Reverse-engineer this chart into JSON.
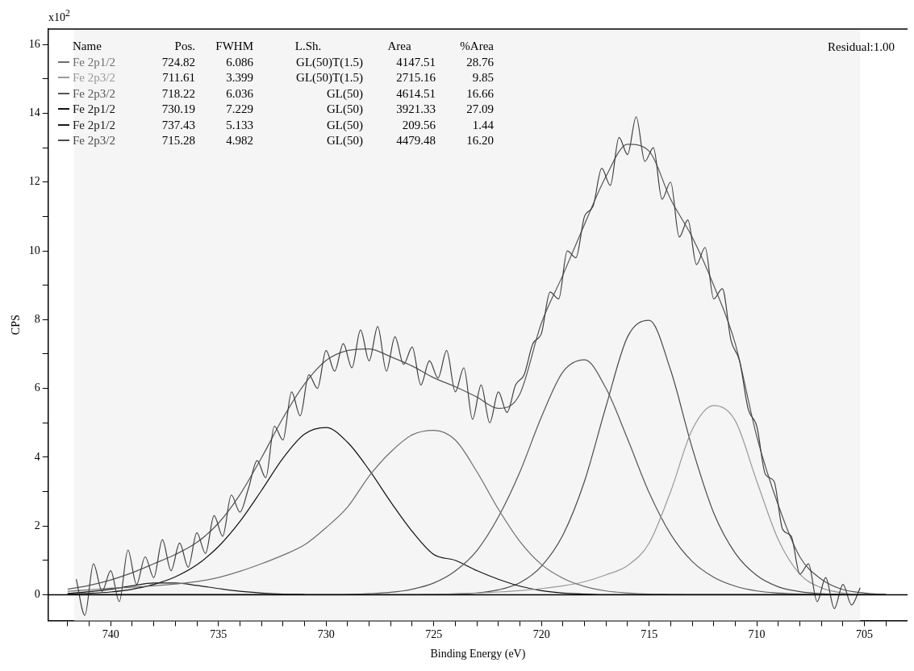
{
  "chart_data": {
    "type": "line",
    "xlabel": "Binding Energy (eV)",
    "ylabel": "CPS",
    "xlim": [
      742.9,
      703
    ],
    "ylim": [
      -0.75,
      16.45
    ],
    "xticks": [
      {
        "value": 742,
        "label": null
      },
      {
        "value": 741,
        "label": null
      },
      740,
      {
        "value": 739,
        "label": null
      },
      {
        "value": 738,
        "label": null
      },
      {
        "value": 737,
        "label": null
      },
      {
        "value": 736,
        "label": null
      },
      735,
      {
        "value": 734,
        "label": null
      },
      {
        "value": 733,
        "label": null
      },
      {
        "value": 732,
        "label": null
      },
      {
        "value": 731,
        "label": null
      },
      730,
      {
        "value": 729,
        "label": null
      },
      {
        "value": 728,
        "label": null
      },
      {
        "value": 727,
        "label": null
      },
      {
        "value": 726,
        "label": null
      },
      725,
      {
        "value": 724,
        "label": null
      },
      {
        "value": 723,
        "label": null
      },
      {
        "value": 722,
        "label": null
      },
      {
        "value": 721,
        "label": null
      },
      720,
      {
        "value": 719,
        "label": null
      },
      {
        "value": 718,
        "label": null
      },
      {
        "value": 717,
        "label": null
      },
      {
        "value": 716,
        "label": null
      },
      715,
      {
        "value": 714,
        "label": null
      },
      {
        "value": 713,
        "label": null
      },
      {
        "value": 712,
        "label": null
      },
      {
        "value": 711,
        "label": null
      },
      710,
      {
        "value": 709,
        "label": null
      },
      {
        "value": 708,
        "label": null
      },
      {
        "value": 707,
        "label": null
      },
      {
        "value": 706,
        "label": null
      },
      705,
      {
        "value": 704,
        "label": null
      }
    ],
    "yticks": [
      0,
      {
        "value": 1,
        "label": null
      },
      2,
      {
        "value": 3,
        "label": null
      },
      4,
      {
        "value": 5,
        "label": null
      },
      6,
      {
        "value": 7,
        "label": null
      },
      8,
      {
        "value": 9,
        "label": null
      },
      10,
      {
        "value": 11,
        "label": null
      },
      12,
      {
        "value": 13,
        "label": null
      },
      14,
      {
        "value": 15,
        "label": null
      },
      16
    ],
    "grid": false,
    "legend": "top left",
    "marker": "none",
    "line_style": "solid",
    "bands": [
      {
        "axis": "x",
        "from": 741.7,
        "to": 705.2,
        "color": "#f5f5f5"
      }
    ],
    "ref_lines": [
      {
        "axis": "y",
        "value": 0,
        "color": "#000000"
      }
    ],
    "annotations": [
      "x10$^{2}$",
      "Residual:1.00",
      "Name",
      "Pos.",
      "FWHM",
      "L.Sh.",
      "Area",
      "%Area",
      "724.82",
      "6.086",
      "GL(50)T(1.5)",
      "4147.51",
      "28.76",
      "711.61",
      "3.399",
      "GL(50)T(1.5)",
      "2715.16",
      "9.85",
      "718.22",
      "6.036",
      "GL(50)",
      "4614.51",
      "16.66",
      "730.19",
      "7.229",
      "GL(50)",
      "3921.33",
      "27.09",
      "737.43",
      "5.133",
      "GL(50)",
      "209.56",
      "1.44",
      "715.28",
      "4.982",
      "GL(50)",
      "4479.48",
      "16.20"
    ],
    "x": [
      742,
      741,
      740,
      739,
      738,
      737,
      736,
      735,
      734,
      733,
      732,
      731,
      730,
      729,
      728,
      727,
      726,
      725,
      724,
      723,
      722,
      721,
      720,
      719,
      718,
      717,
      716,
      715,
      714,
      713,
      712,
      711,
      710,
      709,
      708,
      707,
      706,
      705,
      704
    ],
    "series": [
      {
        "color": "#404040",
        "x": [
          741.6,
          741.2,
          740.8,
          740.4,
          740.0,
          739.6,
          739.2,
          738.8,
          738.4,
          738.0,
          737.6,
          737.2,
          736.8,
          736.4,
          736.0,
          735.6,
          735.2,
          734.8,
          734.4,
          734.0,
          733.6,
          733.2,
          732.8,
          732.4,
          732.0,
          731.6,
          731.2,
          730.8,
          730.4,
          730.0,
          729.6,
          729.2,
          728.8,
          728.4,
          728.0,
          727.6,
          727.2,
          726.8,
          726.4,
          726.0,
          725.6,
          725.2,
          724.8,
          724.4,
          724.0,
          723.6,
          723.2,
          722.8,
          722.4,
          722.0,
          721.6,
          721.2,
          720.8,
          720.4,
          720.0,
          719.6,
          719.2,
          718.8,
          718.4,
          718.0,
          717.6,
          717.2,
          716.8,
          716.4,
          716.0,
          715.6,
          715.2,
          714.8,
          714.4,
          714.0,
          713.6,
          713.2,
          712.8,
          712.4,
          712.0,
          711.6,
          711.2,
          710.8,
          710.4,
          710.0,
          709.6,
          709.2,
          708.8,
          708.4,
          708.0,
          707.6,
          707.2,
          706.8,
          706.4,
          706.0,
          705.6,
          705.2
        ],
        "values": [
          0.45,
          -0.6,
          0.9,
          0.1,
          0.7,
          -0.2,
          1.3,
          0.3,
          1.1,
          0.5,
          1.6,
          0.7,
          1.5,
          0.8,
          1.8,
          1.2,
          2.3,
          1.7,
          2.9,
          2.4,
          3.1,
          3.9,
          3.4,
          4.9,
          4.5,
          5.9,
          5.2,
          6.4,
          6.0,
          7.1,
          6.5,
          7.3,
          6.6,
          7.7,
          6.8,
          7.8,
          6.5,
          7.5,
          6.7,
          7.2,
          6.1,
          6.8,
          6.3,
          7.1,
          5.9,
          6.6,
          5.1,
          6.1,
          5.0,
          5.9,
          5.3,
          6.1,
          6.4,
          7.3,
          7.6,
          8.8,
          8.6,
          10.0,
          9.8,
          11.0,
          11.3,
          12.4,
          11.9,
          13.3,
          12.8,
          13.9,
          12.6,
          13.0,
          11.5,
          12.0,
          10.4,
          10.9,
          9.6,
          10.1,
          8.6,
          8.9,
          7.4,
          6.8,
          5.4,
          4.9,
          3.5,
          3.3,
          1.9,
          1.7,
          0.6,
          0.9,
          -0.2,
          0.5,
          -0.4,
          0.3,
          -0.3,
          0.2
        ]
      },
      {
        "color": "#555555",
        "values": [
          0.16,
          0.27,
          0.43,
          0.64,
          0.9,
          1.17,
          1.52,
          2.08,
          2.91,
          3.98,
          5.14,
          6.13,
          6.81,
          7.1,
          7.15,
          6.92,
          6.65,
          6.31,
          6.05,
          5.75,
          5.42,
          5.84,
          7.9,
          9.3,
          10.77,
          12.17,
          13.1,
          12.9,
          11.5,
          10.4,
          9.0,
          7.3,
          4.6,
          2.6,
          1.1,
          0.45,
          0.15,
          0.05,
          0
        ]
      },
      {
        "name": "Fe 2p1/2",
        "color": "#6e6e6e",
        "values": [
          0.1,
          0.14,
          0.19,
          0.22,
          0.26,
          0.31,
          0.38,
          0.5,
          0.68,
          0.9,
          1.15,
          1.45,
          1.95,
          2.55,
          3.45,
          4.15,
          4.65,
          4.78,
          4.5,
          3.58,
          2.49,
          1.55,
          0.88,
          0.48,
          0.24,
          0.11,
          0.05,
          0.02,
          0.01,
          0,
          0,
          0,
          0,
          0,
          0,
          0,
          0,
          0,
          0
        ]
      },
      {
        "name": "Fe 2p3/2",
        "color": "#999999",
        "values": [
          0,
          0,
          0,
          0,
          0,
          0,
          0,
          0,
          0,
          0,
          0,
          0,
          0,
          0,
          0,
          0,
          0,
          0.01,
          0.03,
          0.05,
          0.08,
          0.12,
          0.18,
          0.26,
          0.38,
          0.58,
          0.85,
          1.5,
          3.0,
          4.8,
          5.5,
          5.06,
          3.3,
          1.6,
          0.6,
          0.2,
          0.05,
          0,
          0
        ]
      },
      {
        "name": "Fe 2p3/2",
        "color": "#555555",
        "values": [
          0,
          0,
          0,
          0,
          0,
          0,
          0,
          0,
          0,
          0,
          0,
          0,
          0,
          0.01,
          0.03,
          0.07,
          0.16,
          0.34,
          0.69,
          1.28,
          2.26,
          3.57,
          5.17,
          6.48,
          6.83,
          6.0,
          4.53,
          2.97,
          1.76,
          0.97,
          0.51,
          0.25,
          0.11,
          0.05,
          0.02,
          0.01,
          0,
          0,
          0
        ]
      },
      {
        "name": "Fe 2p1/2",
        "color": "#111111",
        "values": [
          0.02,
          0.04,
          0.08,
          0.16,
          0.3,
          0.52,
          0.87,
          1.4,
          2.13,
          3.03,
          3.97,
          4.67,
          4.86,
          4.43,
          3.63,
          2.7,
          1.84,
          1.17,
          1.0,
          0.7,
          0.45,
          0.25,
          0.12,
          0.05,
          0.02,
          0,
          0,
          0,
          0,
          0,
          0,
          0,
          0,
          0,
          0,
          0,
          0,
          0,
          0
        ]
      },
      {
        "name": "Fe 2p1/2",
        "color": "#1a1a1a",
        "values": [
          0.04,
          0.09,
          0.16,
          0.26,
          0.34,
          0.34,
          0.27,
          0.18,
          0.1,
          0.05,
          0.02,
          0.01,
          null,
          null,
          null,
          null,
          null,
          null,
          null,
          null,
          null,
          null,
          null,
          null,
          null,
          null,
          null,
          null,
          null,
          null,
          null,
          null,
          null,
          null,
          null,
          null,
          null,
          null,
          null
        ]
      },
      {
        "name": "Fe 2p3/2",
        "color": "#4a4a4a",
        "values": [
          0,
          0,
          0,
          0,
          0,
          0,
          0,
          0,
          0,
          0,
          0,
          0,
          0,
          0,
          0,
          0,
          0,
          0.01,
          0.02,
          0.05,
          0.14,
          0.35,
          0.83,
          1.74,
          3.3,
          5.48,
          7.5,
          7.98,
          6.53,
          4.27,
          2.38,
          1.21,
          0.56,
          0.23,
          0.09,
          0.03,
          0.01,
          0,
          0
        ]
      }
    ]
  }
}
